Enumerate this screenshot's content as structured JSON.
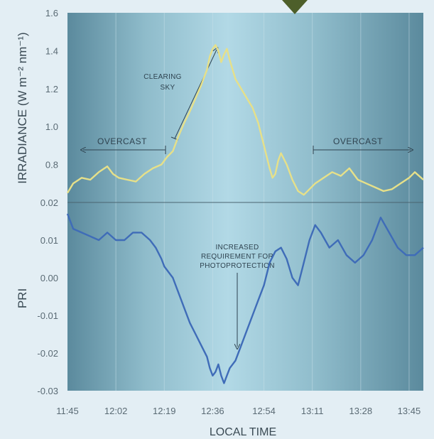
{
  "chart_data": {
    "type": "line",
    "xlabel": "LOCAL TIME",
    "x_ticks": [
      "11:45",
      "12:02",
      "12:19",
      "12:36",
      "12:54",
      "13:11",
      "13:28",
      "13:45"
    ],
    "xlim": [
      "11:45",
      "13:50"
    ],
    "grid": "vertical",
    "panels": [
      {
        "name": "top",
        "ylabel": "IRRADIANCE (W m⁻² nm⁻¹)",
        "ylim": [
          0.6,
          1.6
        ],
        "y_ticks": [
          "1.6",
          "1.4",
          "1.2",
          "1.0",
          "0.8"
        ],
        "series": [
          {
            "color": "#e6e089",
            "x": [
              "11:45",
              "11:47",
              "11:50",
              "11:53",
              "11:56",
              "11:59",
              "12:01",
              "12:03",
              "12:06",
              "12:09",
              "12:12",
              "12:15",
              "12:18",
              "12:20",
              "12:22",
              "12:24",
              "12:26",
              "12:28",
              "12:30",
              "12:32",
              "12:34",
              "12:35",
              "12:36",
              "12:37",
              "12:38",
              "12:39",
              "12:40",
              "12:41",
              "12:42",
              "12:43",
              "12:44",
              "12:46",
              "12:48",
              "12:50",
              "12:52",
              "12:54",
              "12:56",
              "12:57",
              "12:58",
              "12:59",
              "13:00",
              "13:02",
              "13:04",
              "13:06",
              "13:08",
              "13:10",
              "13:12",
              "13:15",
              "13:18",
              "13:21",
              "13:24",
              "13:27",
              "13:30",
              "13:33",
              "13:36",
              "13:39",
              "13:42",
              "13:45",
              "13:47",
              "13:50"
            ],
            "y": [
              0.65,
              0.7,
              0.73,
              0.72,
              0.76,
              0.79,
              0.75,
              0.73,
              0.72,
              0.71,
              0.75,
              0.78,
              0.8,
              0.84,
              0.87,
              0.95,
              1.02,
              1.08,
              1.15,
              1.22,
              1.3,
              1.37,
              1.41,
              1.43,
              1.4,
              1.34,
              1.38,
              1.41,
              1.35,
              1.3,
              1.25,
              1.2,
              1.15,
              1.1,
              1.02,
              0.9,
              0.78,
              0.73,
              0.75,
              0.82,
              0.86,
              0.8,
              0.72,
              0.66,
              0.64,
              0.67,
              0.7,
              0.73,
              0.76,
              0.74,
              0.78,
              0.72,
              0.7,
              0.68,
              0.66,
              0.67,
              0.7,
              0.73,
              0.76,
              0.72
            ]
          }
        ]
      },
      {
        "name": "bottom",
        "ylabel": "PRI",
        "ylim": [
          -0.03,
          0.02
        ],
        "y_ticks": [
          "0.02",
          "0.01",
          "0.00",
          "-0.01",
          "-0.02",
          "-0.03"
        ],
        "series": [
          {
            "color": "#3f6cb8",
            "x": [
              "11:45",
              "11:47",
              "11:50",
              "11:53",
              "11:56",
              "11:59",
              "12:02",
              "12:05",
              "12:08",
              "12:11",
              "12:14",
              "12:16",
              "12:18",
              "12:19",
              "12:20",
              "12:22",
              "12:24",
              "12:26",
              "12:28",
              "12:30",
              "12:32",
              "12:34",
              "12:35",
              "12:36",
              "12:37",
              "12:38",
              "12:39",
              "12:40",
              "12:41",
              "12:42",
              "12:44",
              "12:46",
              "12:48",
              "12:50",
              "12:52",
              "12:54",
              "12:56",
              "12:58",
              "13:00",
              "13:02",
              "13:04",
              "13:06",
              "13:08",
              "13:10",
              "13:12",
              "13:14",
              "13:17",
              "13:20",
              "13:23",
              "13:26",
              "13:29",
              "13:32",
              "13:35",
              "13:38",
              "13:41",
              "13:44",
              "13:47",
              "13:50"
            ],
            "y": [
              0.017,
              0.013,
              0.012,
              0.011,
              0.01,
              0.012,
              0.01,
              0.01,
              0.012,
              0.012,
              0.01,
              0.008,
              0.005,
              0.003,
              0.002,
              0.0,
              -0.004,
              -0.008,
              -0.012,
              -0.015,
              -0.018,
              -0.021,
              -0.024,
              -0.026,
              -0.025,
              -0.023,
              -0.026,
              -0.028,
              -0.026,
              -0.024,
              -0.022,
              -0.018,
              -0.014,
              -0.01,
              -0.006,
              -0.002,
              0.004,
              0.007,
              0.008,
              0.005,
              0.0,
              -0.002,
              0.004,
              0.01,
              0.014,
              0.012,
              0.008,
              0.01,
              0.006,
              0.004,
              0.006,
              0.01,
              0.016,
              0.012,
              0.008,
              0.006,
              0.006,
              0.008
            ]
          }
        ]
      }
    ],
    "annotations": {
      "overcast_left": "OVERCAST",
      "clearing_sky": [
        "CLEARING",
        "SKY"
      ],
      "overcast_right": "OVERCAST",
      "photoprotection": [
        "INCREASED",
        "REQUIREMENT FOR",
        "PHOTOPROTECTION"
      ]
    }
  }
}
